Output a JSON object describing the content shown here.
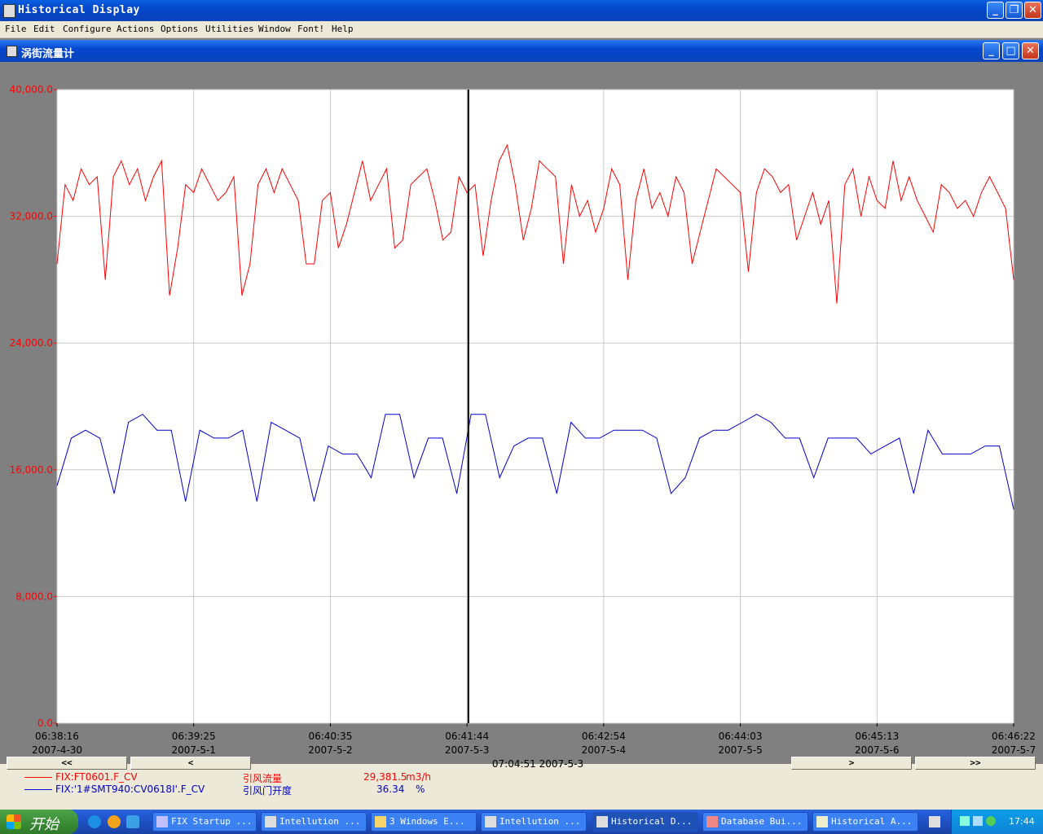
{
  "window": {
    "title": "Historical Display"
  },
  "menu": [
    "File",
    "Edit",
    "Configure",
    "Actions",
    "Options",
    "Utilities",
    "Window",
    "Font!",
    "Help"
  ],
  "child": {
    "title": "涡街流量计"
  },
  "chart_data": {
    "type": "line",
    "ylim": [
      0,
      40000
    ],
    "yticks": [
      "40,000.0",
      "32,000.0",
      "24,000.0",
      "16,000.0",
      "8,000.0",
      "0.0"
    ],
    "xticks": [
      {
        "time": "06:38:16",
        "date": "2007-4-30"
      },
      {
        "time": "06:39:25",
        "date": "2007-5-1"
      },
      {
        "time": "06:40:35",
        "date": "2007-5-2"
      },
      {
        "time": "06:41:44",
        "date": "2007-5-3"
      },
      {
        "time": "06:42:54",
        "date": "2007-5-4"
      },
      {
        "time": "06:44:03",
        "date": "2007-5-5"
      },
      {
        "time": "06:45:13",
        "date": "2007-5-6"
      },
      {
        "time": "06:46:22",
        "date": "2007-5-7"
      }
    ],
    "cursor": {
      "label": "07:04:51  2007-5-3",
      "position": 0.43
    },
    "grid": true,
    "series": [
      {
        "name": "FIX:FT0601.F_CV",
        "color": "#ff0000",
        "values": [
          29000,
          34000,
          33000,
          35000,
          34000,
          34500,
          28000,
          34500,
          35500,
          34000,
          35000,
          33000,
          34500,
          35500,
          27000,
          30000,
          34000,
          33500,
          35000,
          34000,
          33000,
          33500,
          34500,
          27000,
          29000,
          34000,
          35000,
          33500,
          35000,
          34000,
          33000,
          29000,
          29000,
          33000,
          33500,
          30000,
          31500,
          33500,
          35500,
          33000,
          34000,
          35000,
          30000,
          30500,
          34000,
          34500,
          35000,
          33000,
          30500,
          31000,
          34500,
          33500,
          34000,
          29500,
          33000,
          35500,
          36500,
          34000,
          30500,
          32500,
          35500,
          35000,
          34500,
          29000,
          34000,
          32000,
          33000,
          31000,
          32500,
          35000,
          34000,
          28000,
          33000,
          35000,
          32500,
          33500,
          32000,
          34500,
          33500,
          29000,
          31000,
          33000,
          35000,
          34500,
          34000,
          33500,
          28500,
          33500,
          35000,
          34500,
          33500,
          34000,
          30500,
          32000,
          33500,
          31500,
          33000,
          26500,
          34000,
          35000,
          32000,
          34500,
          33000,
          32500,
          35500,
          33000,
          34500,
          33000,
          32000,
          31000,
          34000,
          33500,
          32500,
          33000,
          32000,
          33500,
          34500,
          33500,
          32500,
          28000
        ]
      },
      {
        "name": "FIX:'1#SMT940:CV0618I'.F_CV",
        "color": "#0000cc",
        "values": [
          15000,
          18000,
          18500,
          18000,
          14500,
          19000,
          19500,
          18500,
          18500,
          14000,
          18500,
          18000,
          18000,
          18500,
          14000,
          19000,
          18500,
          18000,
          14000,
          17500,
          17000,
          17000,
          15500,
          19500,
          19500,
          15500,
          18000,
          18000,
          14500,
          19500,
          19500,
          15500,
          17500,
          18000,
          18000,
          14500,
          19000,
          18000,
          18000,
          18500,
          18500,
          18500,
          18000,
          14500,
          15500,
          18000,
          18500,
          18500,
          19000,
          19500,
          19000,
          18000,
          18000,
          15500,
          18000,
          18000,
          18000,
          17000,
          17500,
          18000,
          14500,
          18500,
          17000,
          17000,
          17000,
          17500,
          17500,
          13500
        ]
      }
    ]
  },
  "nav": {
    "first": "<<",
    "prev": "<",
    "next": ">",
    "last": ">>"
  },
  "legend": [
    {
      "tag": "FIX:FT0601.F_CV",
      "desc": "引风流量",
      "value": "29,381.5",
      "unit": "m3/h",
      "color": "#ff0000"
    },
    {
      "tag": "FIX:'1#SMT940:CV0618I'.F_CV",
      "desc": "引风门开度",
      "value": "36.34",
      "unit": "%",
      "color": "#0000cc"
    }
  ],
  "taskbar": {
    "start": "开始",
    "tasks": [
      "FIX Startup ...",
      "Intellution ...",
      "3 Windows E...",
      "Intellution ...",
      "Historical D...",
      "Database Bui...",
      "Historical A..."
    ],
    "clock": "17:44"
  }
}
